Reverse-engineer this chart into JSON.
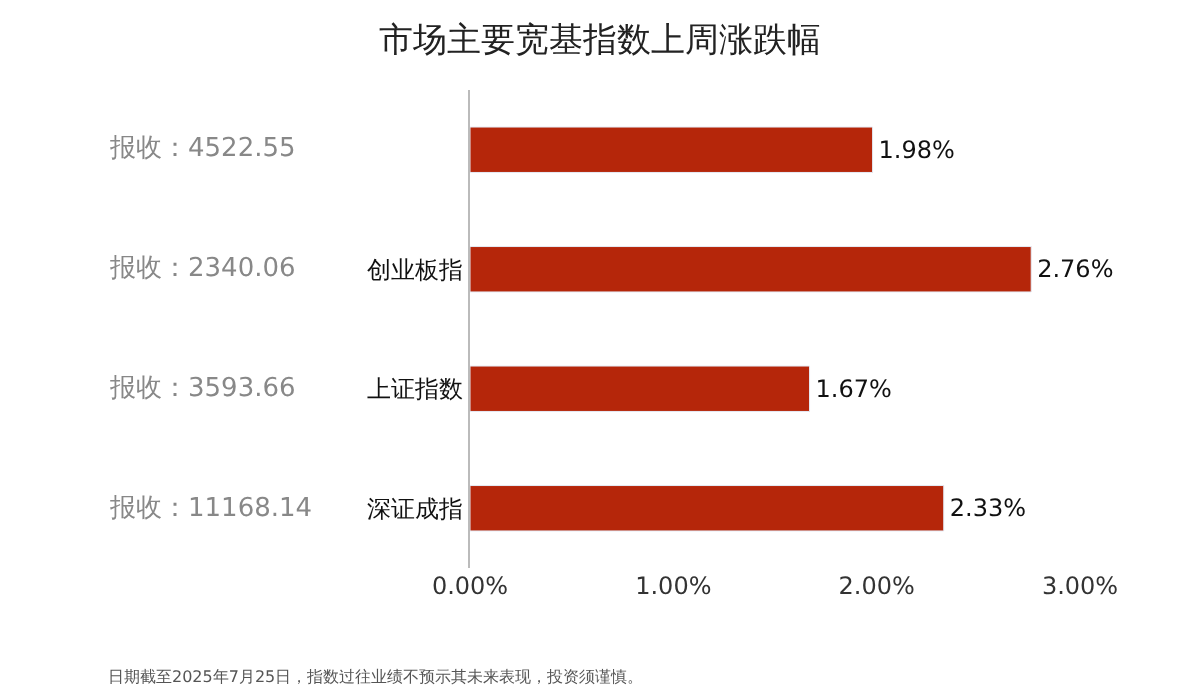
{
  "chart_data": {
    "type": "bar",
    "orientation": "horizontal",
    "title": "市场主要宽基指数上周涨跌幅",
    "categories": [
      null,
      "创业板指",
      "上证指数",
      "深证成指"
    ],
    "values": [
      1.98,
      2.76,
      1.67,
      2.33
    ],
    "value_labels": [
      "1.98%",
      "2.76%",
      "1.67%",
      "2.33%"
    ],
    "color": "#b5260a",
    "xlim": [
      0,
      3
    ],
    "xticks": [
      {
        "value": 0,
        "label": "0.00%"
      },
      {
        "value": 1,
        "label": "1.00%"
      },
      {
        "value": 2,
        "label": "2.00%"
      },
      {
        "value": 3,
        "label": "3.00%"
      }
    ],
    "annotations": [
      "报收：4522.55",
      "报收：2340.06",
      "报收：3593.66",
      "报收：11168.14",
      "日期截至2025年7月25日，指数过往业绩不预示其未来表现，投资须谨慎。"
    ]
  }
}
